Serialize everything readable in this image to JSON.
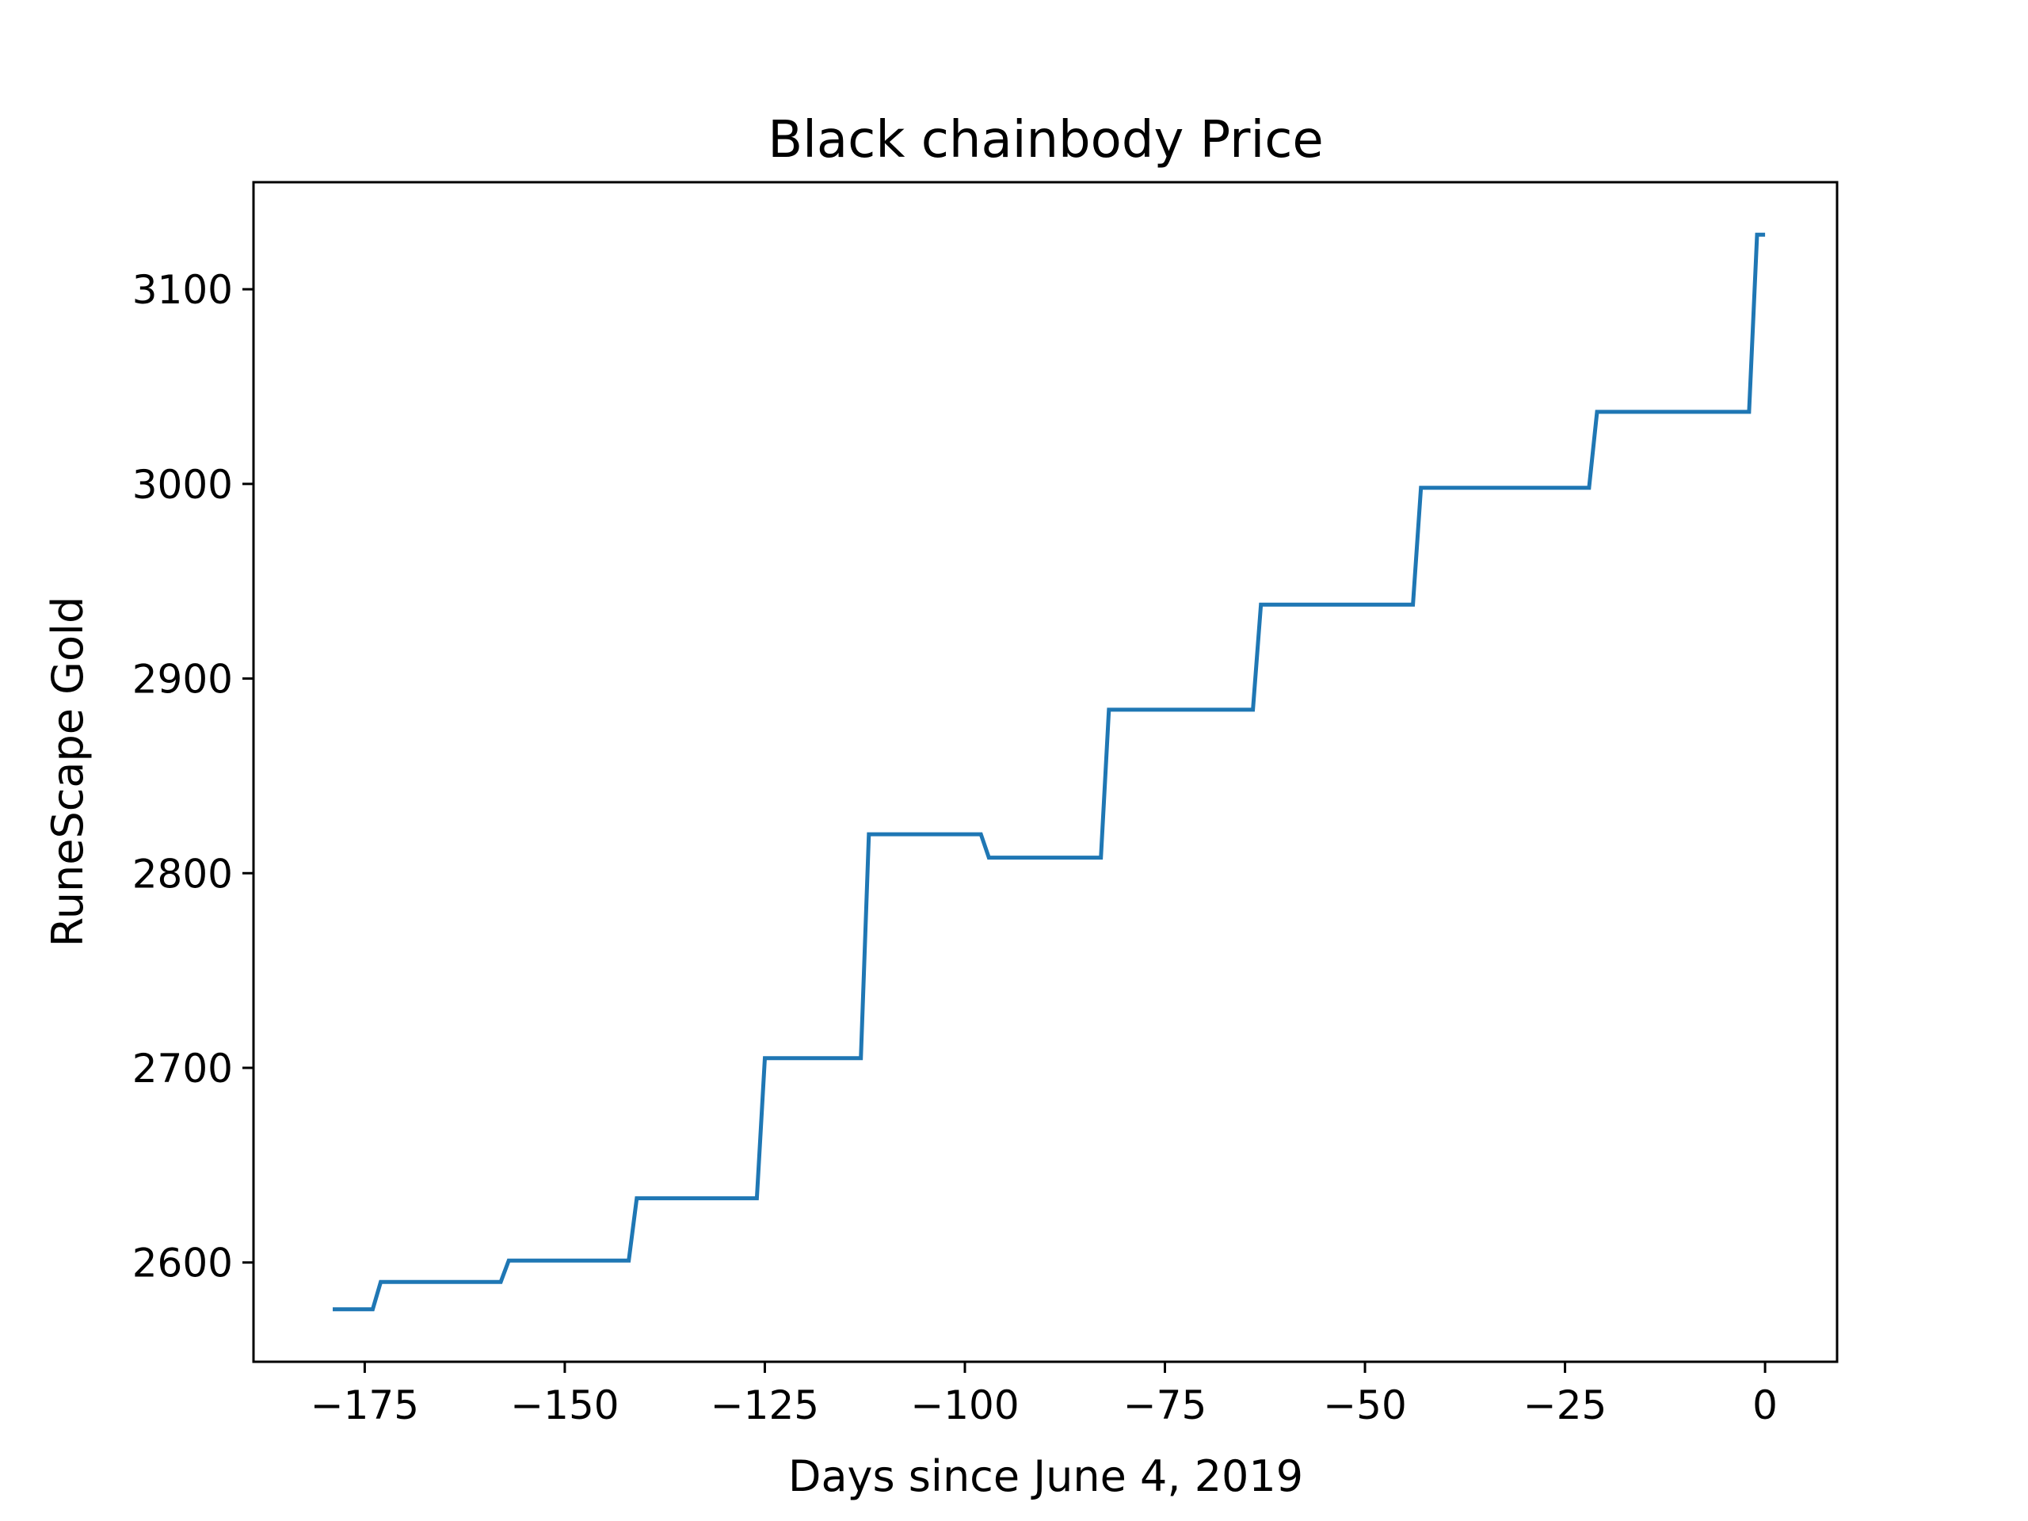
{
  "chart_data": {
    "type": "line",
    "title": "Black chainbody Price",
    "xlabel": "Days since June 4, 2019",
    "ylabel": "RuneScape Gold",
    "xlim": [
      -188.9,
      9
    ],
    "ylim": [
      2549,
      3155
    ],
    "x_ticks": [
      -175,
      -150,
      -125,
      -100,
      -75,
      -50,
      -25,
      0
    ],
    "x_tick_labels": [
      "−175",
      "−150",
      "−125",
      "−100",
      "−75",
      "−50",
      "−25",
      "0"
    ],
    "y_ticks": [
      2600,
      2700,
      2800,
      2900,
      3000,
      3100
    ],
    "y_tick_labels": [
      "2600",
      "2700",
      "2800",
      "2900",
      "3000",
      "3100"
    ],
    "grid": false,
    "line_color": "#1f77b4",
    "series": [
      {
        "x": [
          -179,
          -174,
          -173,
          -158,
          -157,
          -142,
          -141,
          -126,
          -125,
          -113,
          -112,
          -98,
          -97,
          -83,
          -82,
          -64,
          -63,
          -44,
          -43,
          -22,
          -21,
          -2,
          -1,
          0
        ],
        "y": [
          2576,
          2576,
          2590,
          2590,
          2601,
          2601,
          2633,
          2633,
          2705,
          2705,
          2820,
          2820,
          2808,
          2808,
          2884,
          2884,
          2938,
          2938,
          2998,
          2998,
          3037,
          3037,
          3128,
          3128
        ]
      }
    ]
  }
}
